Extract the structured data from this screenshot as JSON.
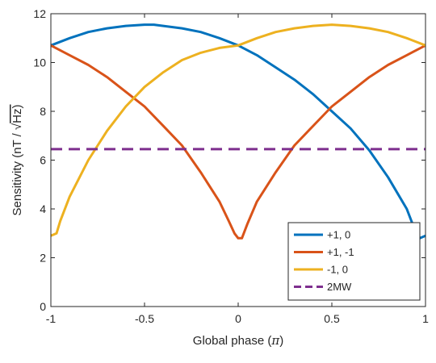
{
  "chart_data": {
    "type": "line",
    "title": "",
    "xlabel_prefix": "Global phase (",
    "xlabel_symbol": "π",
    "xlabel_suffix": ")",
    "ylabel_prefix": "Sensitivity (nT / ",
    "ylabel_root": "√",
    "ylabel_suffix": "Hz)",
    "xlim": [
      -1,
      1
    ],
    "ylim": [
      0,
      12
    ],
    "x_ticks": [
      -1,
      -0.5,
      0,
      0.5,
      1
    ],
    "x_tick_labels": [
      "-1",
      "-0.5",
      "0",
      "0.5",
      "1"
    ],
    "y_ticks": [
      0,
      2,
      4,
      6,
      8,
      10,
      12
    ],
    "y_tick_labels": [
      "0",
      "2",
      "4",
      "6",
      "8",
      "10",
      "12"
    ],
    "grid": false,
    "legend_position": "bottom-right",
    "series": [
      {
        "name": "+1, 0",
        "color": "#0072BD",
        "dash": "solid",
        "x": [
          -1,
          -0.9,
          -0.8,
          -0.7,
          -0.6,
          -0.5,
          -0.45,
          -0.4,
          -0.3,
          -0.2,
          -0.1,
          0,
          0.1,
          0.2,
          0.3,
          0.4,
          0.5,
          0.6,
          0.7,
          0.8,
          0.9,
          0.95,
          0.97,
          1
        ],
        "y": [
          10.7,
          11.0,
          11.25,
          11.4,
          11.5,
          11.55,
          11.55,
          11.5,
          11.4,
          11.25,
          11.0,
          10.7,
          10.3,
          9.8,
          9.3,
          8.7,
          8.0,
          7.3,
          6.4,
          5.3,
          4.0,
          3.0,
          2.8,
          2.9
        ]
      },
      {
        "name": "+1, -1",
        "color": "#D95319",
        "dash": "solid",
        "x": [
          -1,
          -0.9,
          -0.8,
          -0.7,
          -0.6,
          -0.5,
          -0.4,
          -0.3,
          -0.2,
          -0.1,
          -0.05,
          -0.02,
          0,
          0.02,
          0.05,
          0.1,
          0.2,
          0.3,
          0.4,
          0.5,
          0.6,
          0.7,
          0.8,
          0.9,
          1
        ],
        "y": [
          10.7,
          10.3,
          9.9,
          9.4,
          8.8,
          8.2,
          7.4,
          6.6,
          5.5,
          4.3,
          3.5,
          3.0,
          2.8,
          2.8,
          3.4,
          4.3,
          5.5,
          6.6,
          7.4,
          8.2,
          8.8,
          9.4,
          9.9,
          10.3,
          10.7
        ]
      },
      {
        "name": "-1, 0",
        "color": "#EDB120",
        "dash": "solid",
        "x": [
          -1,
          -0.97,
          -0.95,
          -0.9,
          -0.8,
          -0.7,
          -0.6,
          -0.5,
          -0.4,
          -0.3,
          -0.2,
          -0.1,
          0,
          0.1,
          0.2,
          0.3,
          0.4,
          0.5,
          0.6,
          0.7,
          0.8,
          0.9,
          1
        ],
        "y": [
          2.9,
          3.0,
          3.5,
          4.5,
          6.0,
          7.2,
          8.2,
          9.0,
          9.6,
          10.1,
          10.4,
          10.6,
          10.7,
          11.0,
          11.25,
          11.4,
          11.5,
          11.55,
          11.5,
          11.4,
          11.25,
          11.0,
          10.7
        ]
      },
      {
        "name": "2MW",
        "color": "#7E2F8E",
        "dash": "dashed",
        "x": [
          -1,
          1
        ],
        "y": [
          6.45,
          6.45
        ]
      }
    ]
  }
}
